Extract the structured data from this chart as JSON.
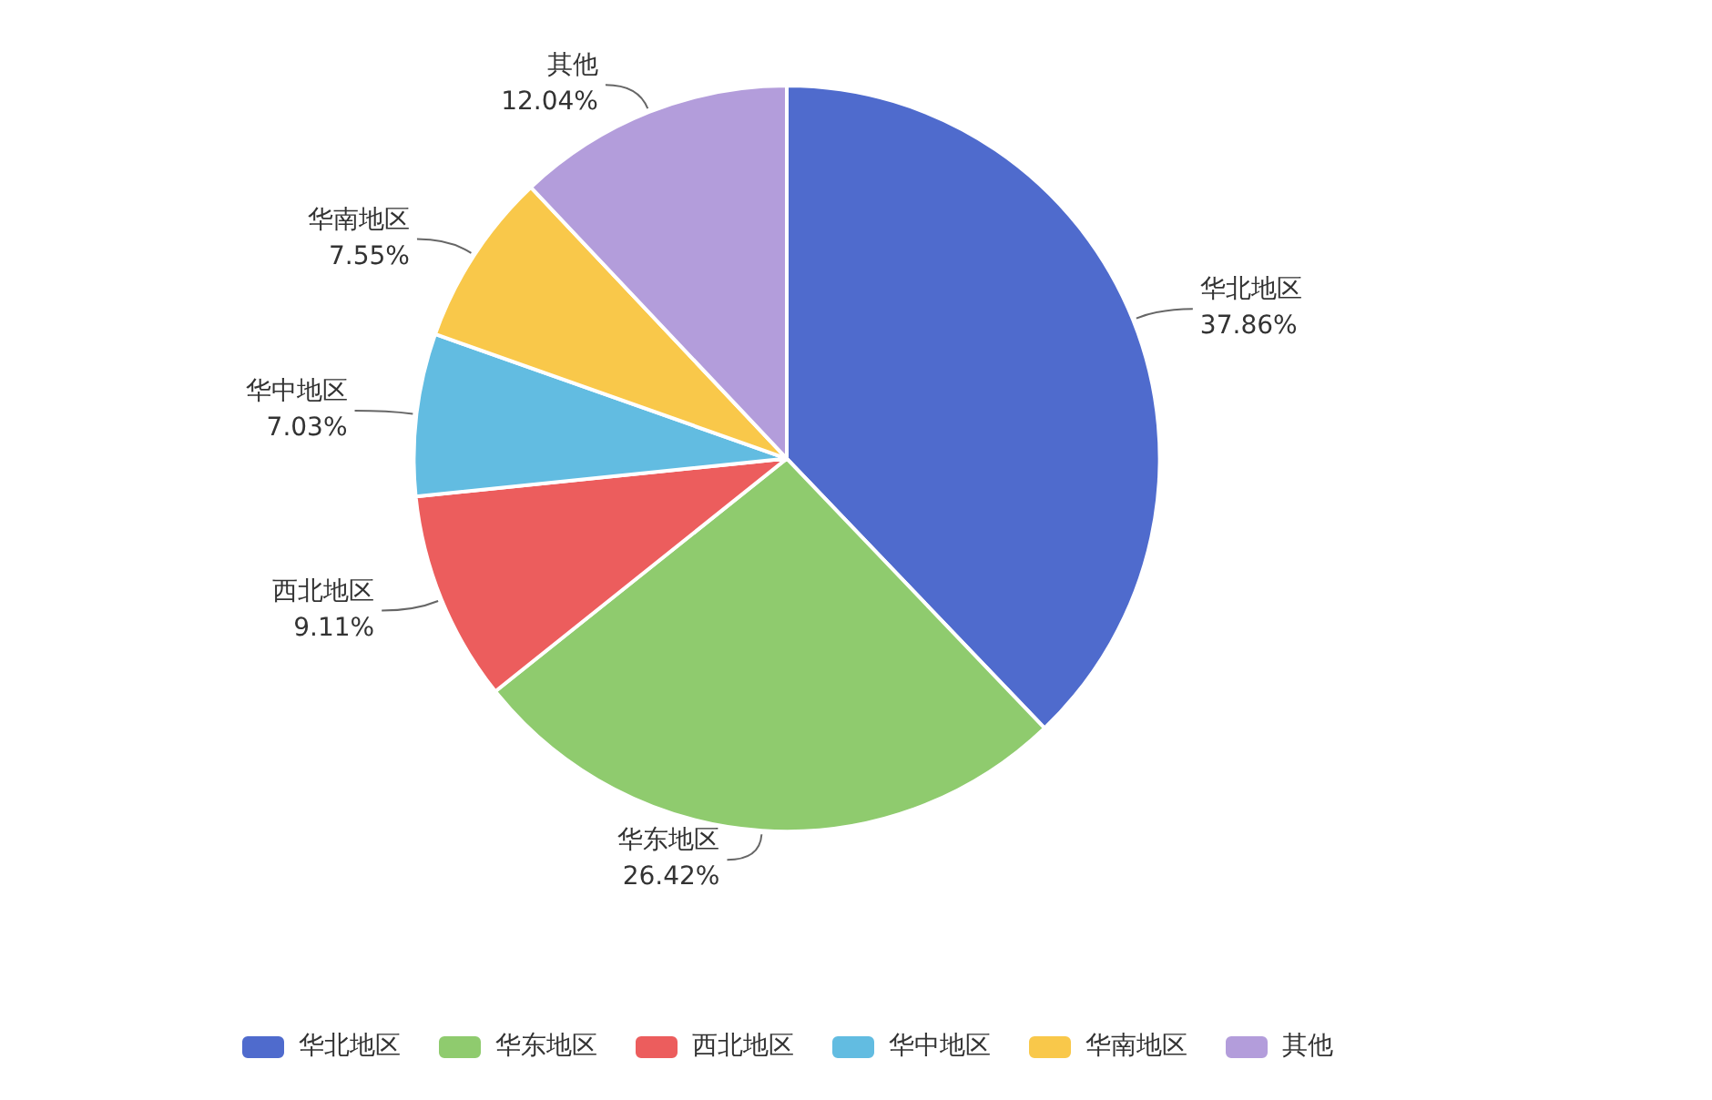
{
  "chart_data": {
    "type": "pie",
    "categories": [
      "华北地区",
      "华东地区",
      "西北地区",
      "华中地区",
      "华南地区",
      "其他"
    ],
    "values": [
      37.86,
      26.42,
      9.11,
      7.03,
      7.55,
      12.04
    ],
    "value_labels": [
      "37.86%",
      "26.42%",
      "9.11%",
      "7.03%",
      "7.55%",
      "12.04%"
    ],
    "colors": [
      "#4f6bcd",
      "#8fcb6e",
      "#ec5d5d",
      "#62bce1",
      "#f9c84a",
      "#b39ddb"
    ],
    "legend": "bottom"
  }
}
